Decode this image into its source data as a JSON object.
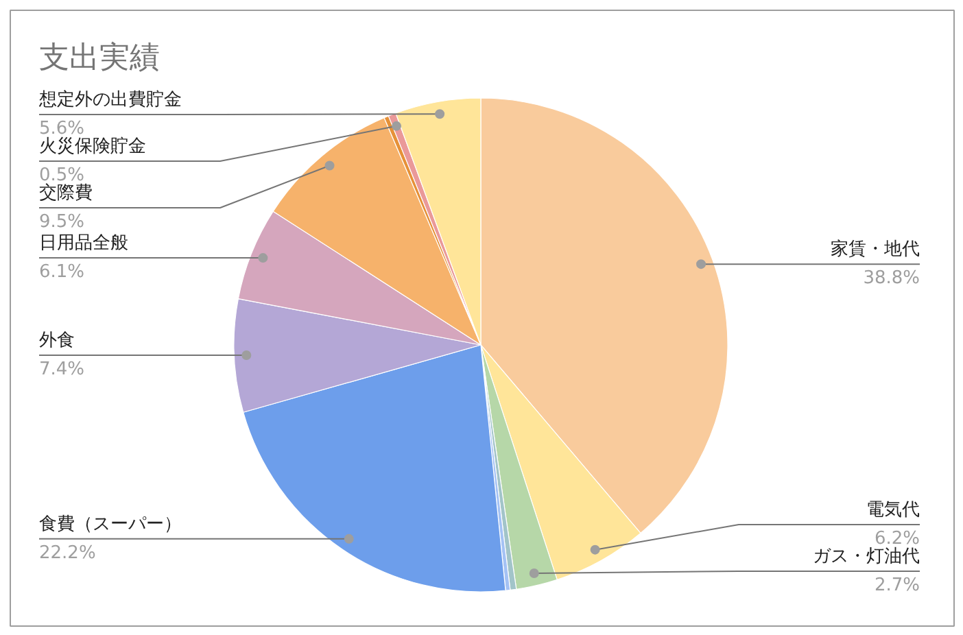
{
  "chart_data": {
    "type": "pie",
    "title": "支出実績",
    "categories": [
      "家賃・地代",
      "電気代",
      "ガス・灯油代",
      null,
      null,
      "食費（スーパー）",
      "外食",
      "日用品全般",
      "交際費",
      null,
      "火災保険貯金",
      "想定外の出費貯金"
    ],
    "values": [
      38.8,
      6.2,
      2.7,
      0.4,
      0.3,
      22.2,
      7.4,
      6.1,
      9.5,
      0.3,
      0.5,
      5.6
    ],
    "colors": [
      "#f9cb9c",
      "#ffe599",
      "#b6d7a8",
      "#a2c4c9",
      "#a4c2f4",
      "#6d9eeb",
      "#b4a7d6",
      "#d5a6bd",
      "#f6b26b",
      "#e69138",
      "#ea9999",
      "#ffe599"
    ],
    "value_labels": [
      "38.8%",
      "6.2%",
      "2.7%",
      null,
      null,
      "22.2%",
      "7.4%",
      "6.1%",
      "9.5%",
      null,
      "0.5%",
      "5.6%"
    ]
  }
}
